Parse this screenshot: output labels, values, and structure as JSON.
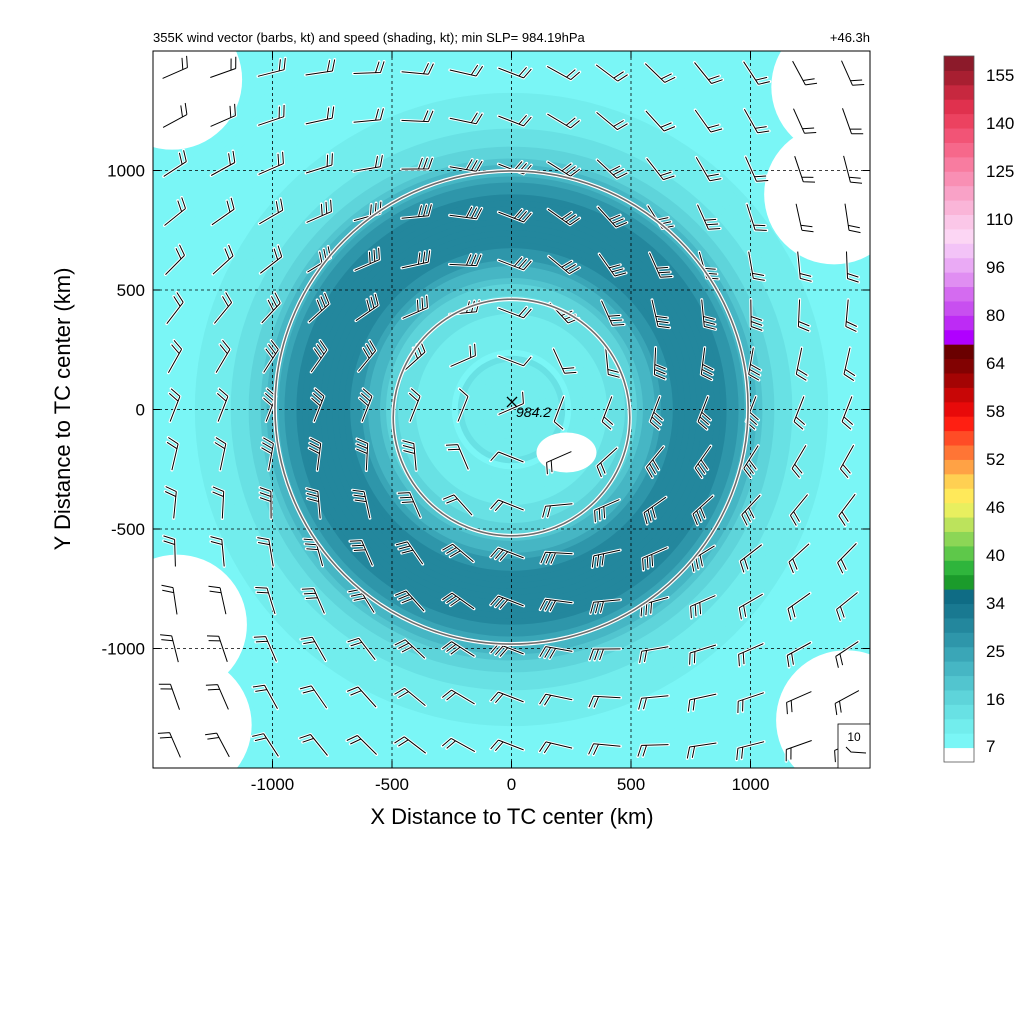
{
  "chart_data": {
    "type": "heatmap",
    "title": "355K wind vector (barbs, kt) and speed (shading, kt); min SLP= 984.19hPa",
    "time_label": "+46.3h",
    "xlabel": "X Distance to TC center (km)",
    "ylabel": "Y Distance to TC center (km)",
    "xlim": [
      -1500,
      1500
    ],
    "ylim": [
      -1500,
      1500
    ],
    "xticks": [
      -1000,
      -500,
      0,
      500,
      1000
    ],
    "yticks": [
      -1000,
      -500,
      0,
      500,
      1000
    ],
    "xtick_labels": [
      "-1000",
      "-500",
      "0",
      "500",
      "1000"
    ],
    "ytick_labels": [
      "-1000",
      "-500",
      "0",
      "500",
      "1000"
    ],
    "grid": true,
    "center": {
      "x": 0,
      "y": 0,
      "marker": "x",
      "label": "984.2"
    },
    "radius_circles_km": [
      500,
      1000
    ],
    "speed_field": {
      "unit": "kt",
      "description_values": {
        "center_speed": 12,
        "max_ring_radius_km": 800,
        "max_ring_speed": 31,
        "outer_speed": 9
      }
    },
    "barbs": {
      "unit": "kt",
      "flow": "anticyclonic outflow",
      "reference": {
        "label": "10",
        "speed": 10
      }
    },
    "colorbar": {
      "tick_labels": [
        "7",
        "16",
        "25",
        "34",
        "40",
        "46",
        "52",
        "58",
        "64",
        "80",
        "96",
        "110",
        "125",
        "140",
        "155"
      ],
      "colors": [
        "#ffffff",
        "#7af6f6",
        "#72eded",
        "#68e1e4",
        "#5ed4da",
        "#52c5cf",
        "#46b6c4",
        "#3aa6b7",
        "#2e96aa",
        "#23879d",
        "#197991",
        "#0f6c85",
        "#1b9b2b",
        "#2fb53c",
        "#5ec84a",
        "#8cd656",
        "#bce35c",
        "#e8ef5f",
        "#ffe95a",
        "#ffd052",
        "#ffa245",
        "#ff7535",
        "#ff4c26",
        "#ff1f12",
        "#e80a0a",
        "#c80606",
        "#a40404",
        "#820202",
        "#6a0000",
        "#b000ff",
        "#bd2bf5",
        "#c84ff0",
        "#d46bf0",
        "#e08ef2",
        "#eaaaf5",
        "#f3c3f7",
        "#fcd6f4",
        "#fbc7e8",
        "#fab5d8",
        "#f9a2c7",
        "#f98fb4",
        "#f87ca0",
        "#f6688b",
        "#f25476",
        "#ec4260",
        "#e0314e",
        "#c7283f",
        "#a81f31",
        "#8c1a2a"
      ]
    }
  }
}
